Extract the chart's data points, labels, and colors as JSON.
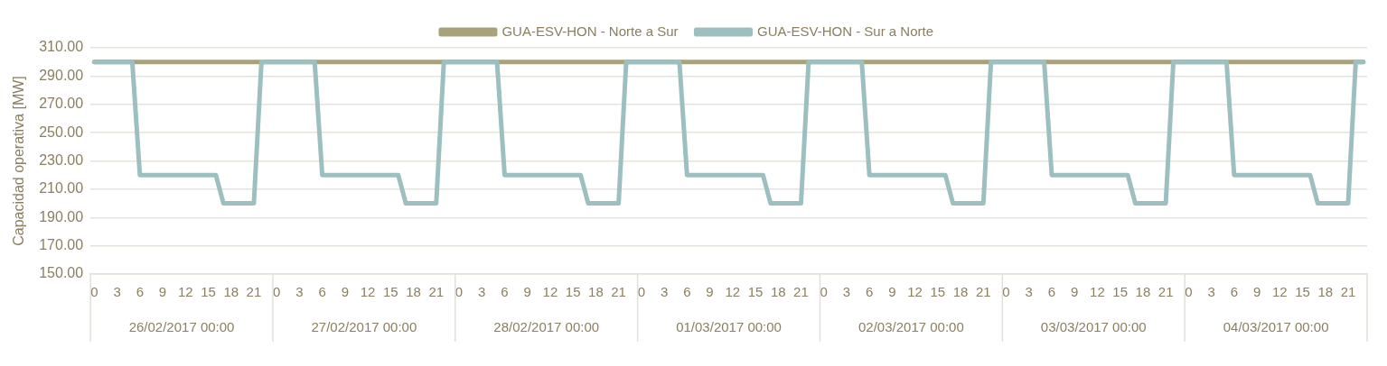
{
  "chart_data": {
    "type": "line",
    "ylabel": "Capacidad operativa [MW]",
    "categories": [
      "0",
      null,
      null,
      "3",
      null,
      null,
      "6",
      null,
      null,
      "9",
      null,
      null,
      "12",
      null,
      null,
      "15",
      null,
      null,
      "18",
      null,
      null,
      "21",
      null,
      null,
      "0",
      null,
      null,
      "3",
      null,
      null,
      "6",
      null,
      null,
      "9",
      null,
      null,
      "12",
      null,
      null,
      "15",
      null,
      null,
      "18",
      null,
      null,
      "21",
      null,
      null,
      "0",
      null,
      null,
      "3",
      null,
      null,
      "6",
      null,
      null,
      "9",
      null,
      null,
      "12",
      null,
      null,
      "15",
      null,
      null,
      "18",
      null,
      null,
      "21",
      null,
      null,
      "0",
      null,
      null,
      "3",
      null,
      null,
      "6",
      null,
      null,
      "9",
      null,
      null,
      "12",
      null,
      null,
      "15",
      null,
      null,
      "18",
      null,
      null,
      "21",
      null,
      null,
      "0",
      null,
      null,
      "3",
      null,
      null,
      "6",
      null,
      null,
      "9",
      null,
      null,
      "12",
      null,
      null,
      "15",
      null,
      null,
      "18",
      null,
      null,
      "21",
      null,
      null,
      "0",
      null,
      null,
      "3",
      null,
      null,
      "6",
      null,
      null,
      "9",
      null,
      null,
      "12",
      null,
      null,
      "15",
      null,
      null,
      "18",
      null,
      null,
      "21",
      null,
      null,
      "0",
      null,
      null,
      "3",
      null,
      null,
      "6",
      null,
      null,
      "9",
      null,
      null,
      "12",
      null,
      null,
      "15",
      null,
      null,
      "18",
      null,
      null,
      "21",
      null,
      null
    ],
    "annotations": [
      "26/02/2017 00:00",
      "27/02/2017 00:00",
      "28/02/2017 00:00",
      "01/03/2017 00:00",
      "02/03/2017 00:00",
      "03/03/2017 00:00",
      "04/03/2017 00:00"
    ],
    "series": [
      {
        "name": "GUA-ESV-HON - Norte a Sur",
        "color": "#a8a27a",
        "values": [
          300,
          300,
          300,
          300,
          300,
          300,
          300,
          300,
          300,
          300,
          300,
          300,
          300,
          300,
          300,
          300,
          300,
          300,
          300,
          300,
          300,
          300,
          300,
          300,
          300,
          300,
          300,
          300,
          300,
          300,
          300,
          300,
          300,
          300,
          300,
          300,
          300,
          300,
          300,
          300,
          300,
          300,
          300,
          300,
          300,
          300,
          300,
          300,
          300,
          300,
          300,
          300,
          300,
          300,
          300,
          300,
          300,
          300,
          300,
          300,
          300,
          300,
          300,
          300,
          300,
          300,
          300,
          300,
          300,
          300,
          300,
          300,
          300,
          300,
          300,
          300,
          300,
          300,
          300,
          300,
          300,
          300,
          300,
          300,
          300,
          300,
          300,
          300,
          300,
          300,
          300,
          300,
          300,
          300,
          300,
          300,
          300,
          300,
          300,
          300,
          300,
          300,
          300,
          300,
          300,
          300,
          300,
          300,
          300,
          300,
          300,
          300,
          300,
          300,
          300,
          300,
          300,
          300,
          300,
          300,
          300,
          300,
          300,
          300,
          300,
          300,
          300,
          300,
          300,
          300,
          300,
          300,
          300,
          300,
          300,
          300,
          300,
          300,
          300,
          300,
          300,
          300,
          300,
          300,
          300,
          300,
          300,
          300,
          300,
          300,
          300,
          300,
          300,
          300,
          300,
          300,
          300,
          300,
          300,
          300,
          300,
          300,
          300,
          300,
          300,
          300,
          300,
          300
        ]
      },
      {
        "name": "GUA-ESV-HON - Sur a Norte",
        "color": "#9dbfbf",
        "values": [
          300,
          300,
          300,
          300,
          300,
          300,
          220,
          220,
          220,
          220,
          220,
          220,
          220,
          220,
          220,
          220,
          220,
          200,
          200,
          200,
          200,
          200,
          300,
          300,
          300,
          300,
          300,
          300,
          300,
          300,
          220,
          220,
          220,
          220,
          220,
          220,
          220,
          220,
          220,
          220,
          220,
          200,
          200,
          200,
          200,
          200,
          300,
          300,
          300,
          300,
          300,
          300,
          300,
          300,
          220,
          220,
          220,
          220,
          220,
          220,
          220,
          220,
          220,
          220,
          220,
          200,
          200,
          200,
          200,
          200,
          300,
          300,
          300,
          300,
          300,
          300,
          300,
          300,
          220,
          220,
          220,
          220,
          220,
          220,
          220,
          220,
          220,
          220,
          220,
          200,
          200,
          200,
          200,
          200,
          300,
          300,
          300,
          300,
          300,
          300,
          300,
          300,
          220,
          220,
          220,
          220,
          220,
          220,
          220,
          220,
          220,
          220,
          220,
          200,
          200,
          200,
          200,
          200,
          300,
          300,
          300,
          300,
          300,
          300,
          300,
          300,
          220,
          220,
          220,
          220,
          220,
          220,
          220,
          220,
          220,
          220,
          220,
          200,
          200,
          200,
          200,
          200,
          300,
          300,
          300,
          300,
          300,
          300,
          300,
          300,
          220,
          220,
          220,
          220,
          220,
          220,
          220,
          220,
          220,
          220,
          220,
          200,
          200,
          200,
          200,
          200,
          300,
          300
        ]
      }
    ],
    "ylim": [
      150,
      310
    ],
    "yticks": [
      {
        "value": 150,
        "label": "150.00"
      },
      {
        "value": 170,
        "label": "170.00"
      },
      {
        "value": 190,
        "label": "190.00"
      },
      {
        "value": 210,
        "label": "210.00"
      },
      {
        "value": 230,
        "label": "230.00"
      },
      {
        "value": 250,
        "label": "250.00"
      },
      {
        "value": 270,
        "label": "270.00"
      },
      {
        "value": 290,
        "label": "290.00"
      },
      {
        "value": 310,
        "label": "310.00"
      }
    ],
    "grid": "y",
    "legend": "top",
    "marker": "none",
    "line_style": "solid"
  }
}
